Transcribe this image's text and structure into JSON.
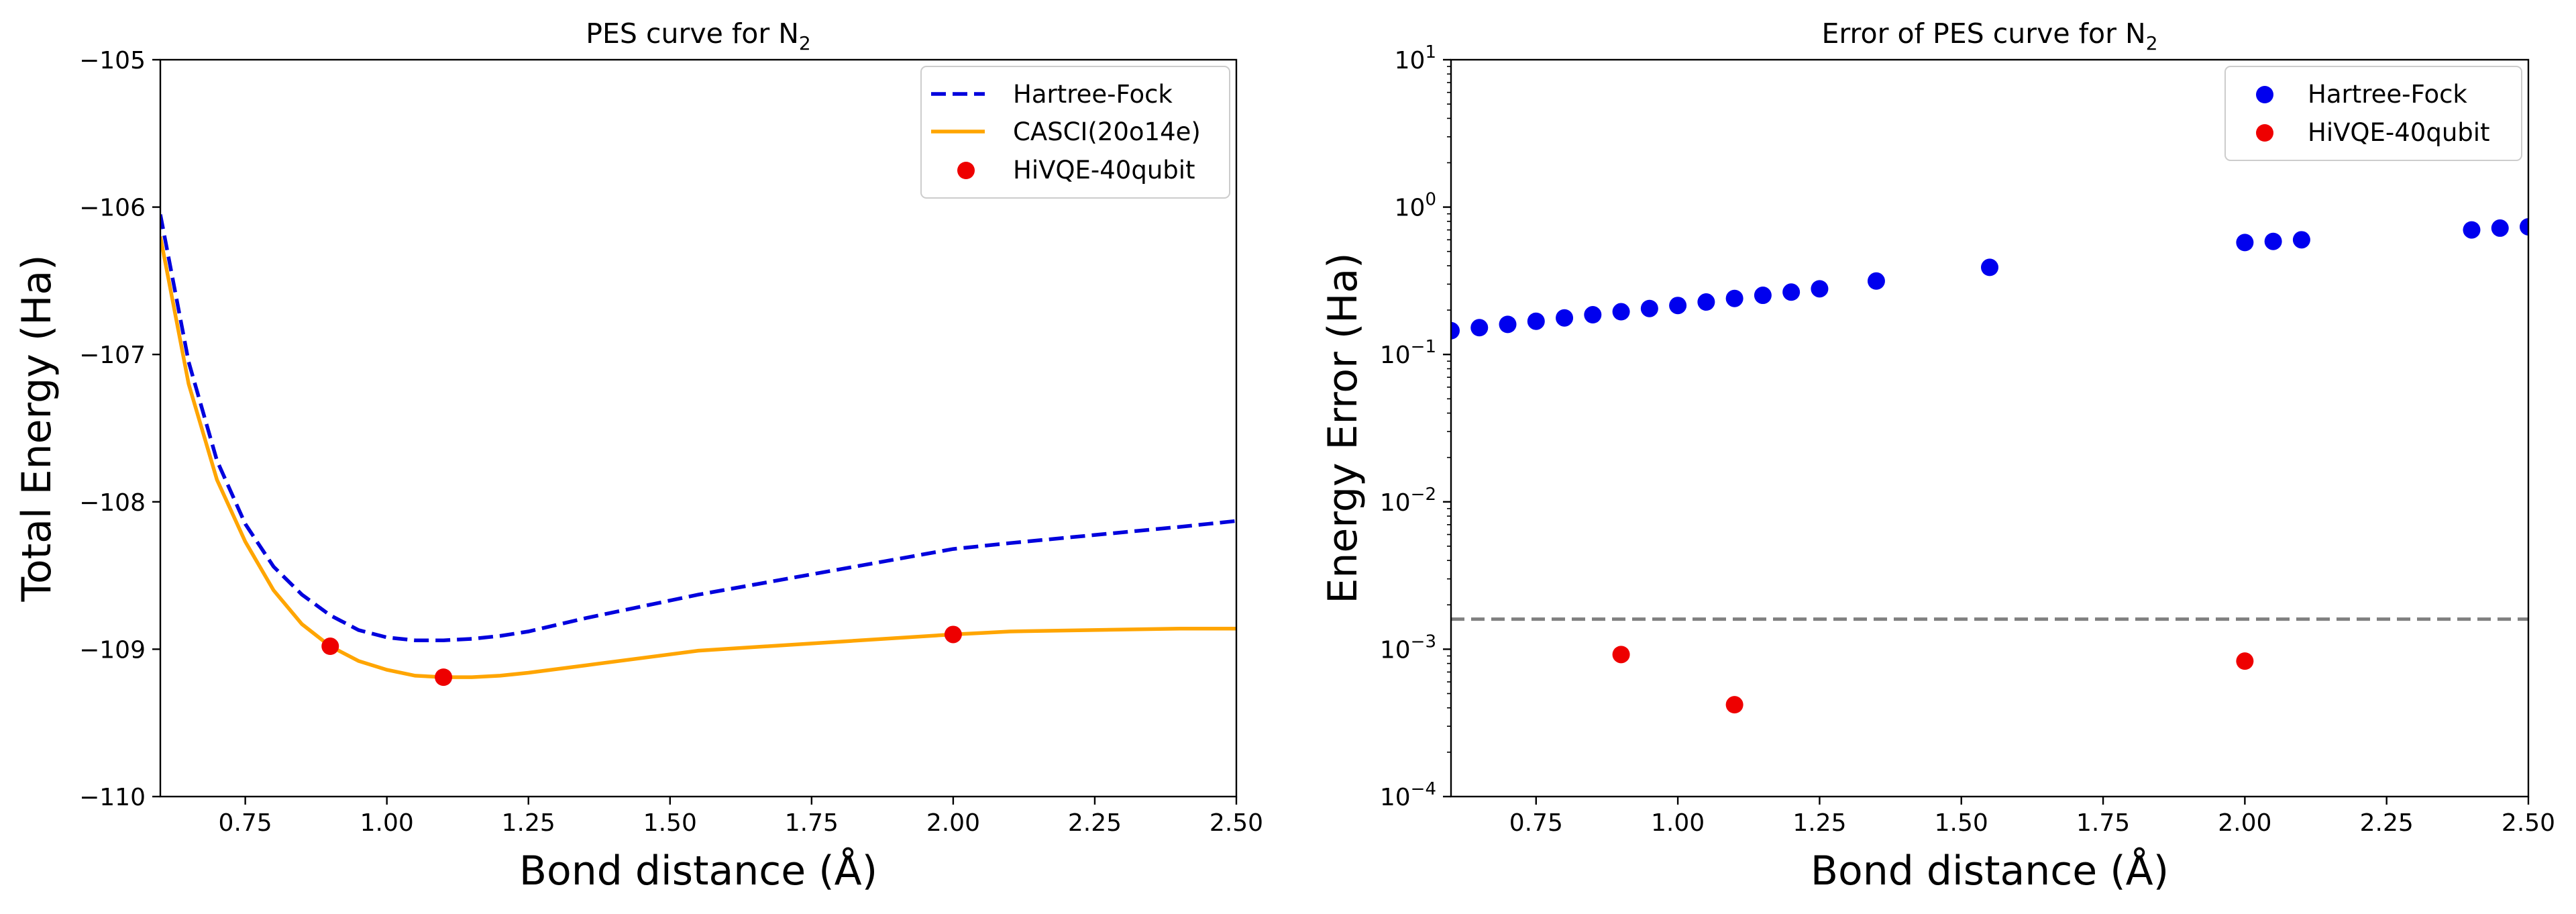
{
  "colors": {
    "hf_line": "#0000dd",
    "hf_scatter": "#0000ee",
    "casci": "#ffa500",
    "hivqe": "#ee0000",
    "threshold": "#808080",
    "axis": "#000000"
  },
  "chart_data": [
    {
      "type": "line",
      "title": "PES curve for N",
      "title_subscript": "2",
      "xlabel": "Bond distance (Å)",
      "ylabel": "Total Energy (Ha)",
      "xlim": [
        0.6,
        2.5
      ],
      "ylim": [
        -110,
        -105
      ],
      "xticks": [
        0.75,
        1.0,
        1.25,
        1.5,
        1.75,
        2.0,
        2.25,
        2.5
      ],
      "xtick_labels": [
        "0.75",
        "1.00",
        "1.25",
        "1.50",
        "1.75",
        "2.00",
        "2.25",
        "2.50"
      ],
      "yticks": [
        -110,
        -109,
        -108,
        -107,
        -106,
        -105
      ],
      "ytick_labels": [
        "−110",
        "−109",
        "−108",
        "−107",
        "−106",
        "−105"
      ],
      "legend_position": "top-right",
      "series": [
        {
          "name": "Hartree-Fock",
          "style": "dashed-line",
          "x": [
            0.6,
            0.65,
            0.7,
            0.75,
            0.8,
            0.85,
            0.9,
            0.95,
            1.0,
            1.05,
            1.1,
            1.15,
            1.2,
            1.25,
            1.35,
            1.55,
            2.0,
            2.05,
            2.1,
            2.4,
            2.45,
            2.5
          ],
          "y": [
            -106.05,
            -107.05,
            -107.72,
            -108.15,
            -108.44,
            -108.63,
            -108.77,
            -108.87,
            -108.92,
            -108.94,
            -108.94,
            -108.93,
            -108.91,
            -108.88,
            -108.79,
            -108.63,
            -108.32,
            -108.3,
            -108.28,
            -108.17,
            -108.15,
            -108.13
          ]
        },
        {
          "name": "CASCI(20o14e)",
          "style": "solid-line",
          "x": [
            0.6,
            0.65,
            0.7,
            0.75,
            0.8,
            0.85,
            0.9,
            0.95,
            1.0,
            1.05,
            1.1,
            1.15,
            1.2,
            1.25,
            1.35,
            1.55,
            2.0,
            2.05,
            2.1,
            2.4,
            2.45,
            2.5
          ],
          "y": [
            -106.2,
            -107.2,
            -107.85,
            -108.27,
            -108.6,
            -108.83,
            -108.98,
            -109.08,
            -109.14,
            -109.18,
            -109.19,
            -109.19,
            -109.18,
            -109.16,
            -109.11,
            -109.01,
            -108.9,
            -108.89,
            -108.88,
            -108.86,
            -108.86,
            -108.86
          ]
        },
        {
          "name": "HiVQE-40qubit",
          "style": "scatter",
          "x": [
            0.9,
            1.1,
            2.0
          ],
          "y": [
            -108.98,
            -109.19,
            -108.9
          ]
        }
      ]
    },
    {
      "type": "scatter",
      "title": "Error of PES curve for N",
      "title_subscript": "2",
      "xlabel": "Bond distance (Å)",
      "ylabel": "Energy Error (Ha)",
      "xlim": [
        0.6,
        2.5
      ],
      "ylim": [
        0.0001,
        10
      ],
      "yscale": "log",
      "xticks": [
        0.75,
        1.0,
        1.25,
        1.5,
        1.75,
        2.0,
        2.25,
        2.5
      ],
      "xtick_labels": [
        "0.75",
        "1.00",
        "1.25",
        "1.50",
        "1.75",
        "2.00",
        "2.25",
        "2.50"
      ],
      "ytick_exponents": [
        -4,
        -3,
        -2,
        -1,
        0,
        1
      ],
      "ytick_base": "10",
      "threshold_line": 0.0016,
      "legend_position": "top-right",
      "series": [
        {
          "name": "Hartree-Fock",
          "x": [
            0.6,
            0.65,
            0.7,
            0.75,
            0.8,
            0.85,
            0.9,
            0.95,
            1.0,
            1.05,
            1.1,
            1.15,
            1.2,
            1.25,
            1.35,
            1.55,
            2.0,
            2.05,
            2.1,
            2.4,
            2.45,
            2.5
          ],
          "y": [
            0.145,
            0.152,
            0.16,
            0.168,
            0.177,
            0.186,
            0.195,
            0.205,
            0.215,
            0.227,
            0.24,
            0.252,
            0.265,
            0.279,
            0.315,
            0.39,
            0.575,
            0.585,
            0.6,
            0.7,
            0.72,
            0.735
          ]
        },
        {
          "name": "HiVQE-40qubit",
          "x": [
            0.9,
            1.1,
            2.0
          ],
          "y": [
            0.00092,
            0.00042,
            0.00083
          ]
        }
      ]
    }
  ]
}
